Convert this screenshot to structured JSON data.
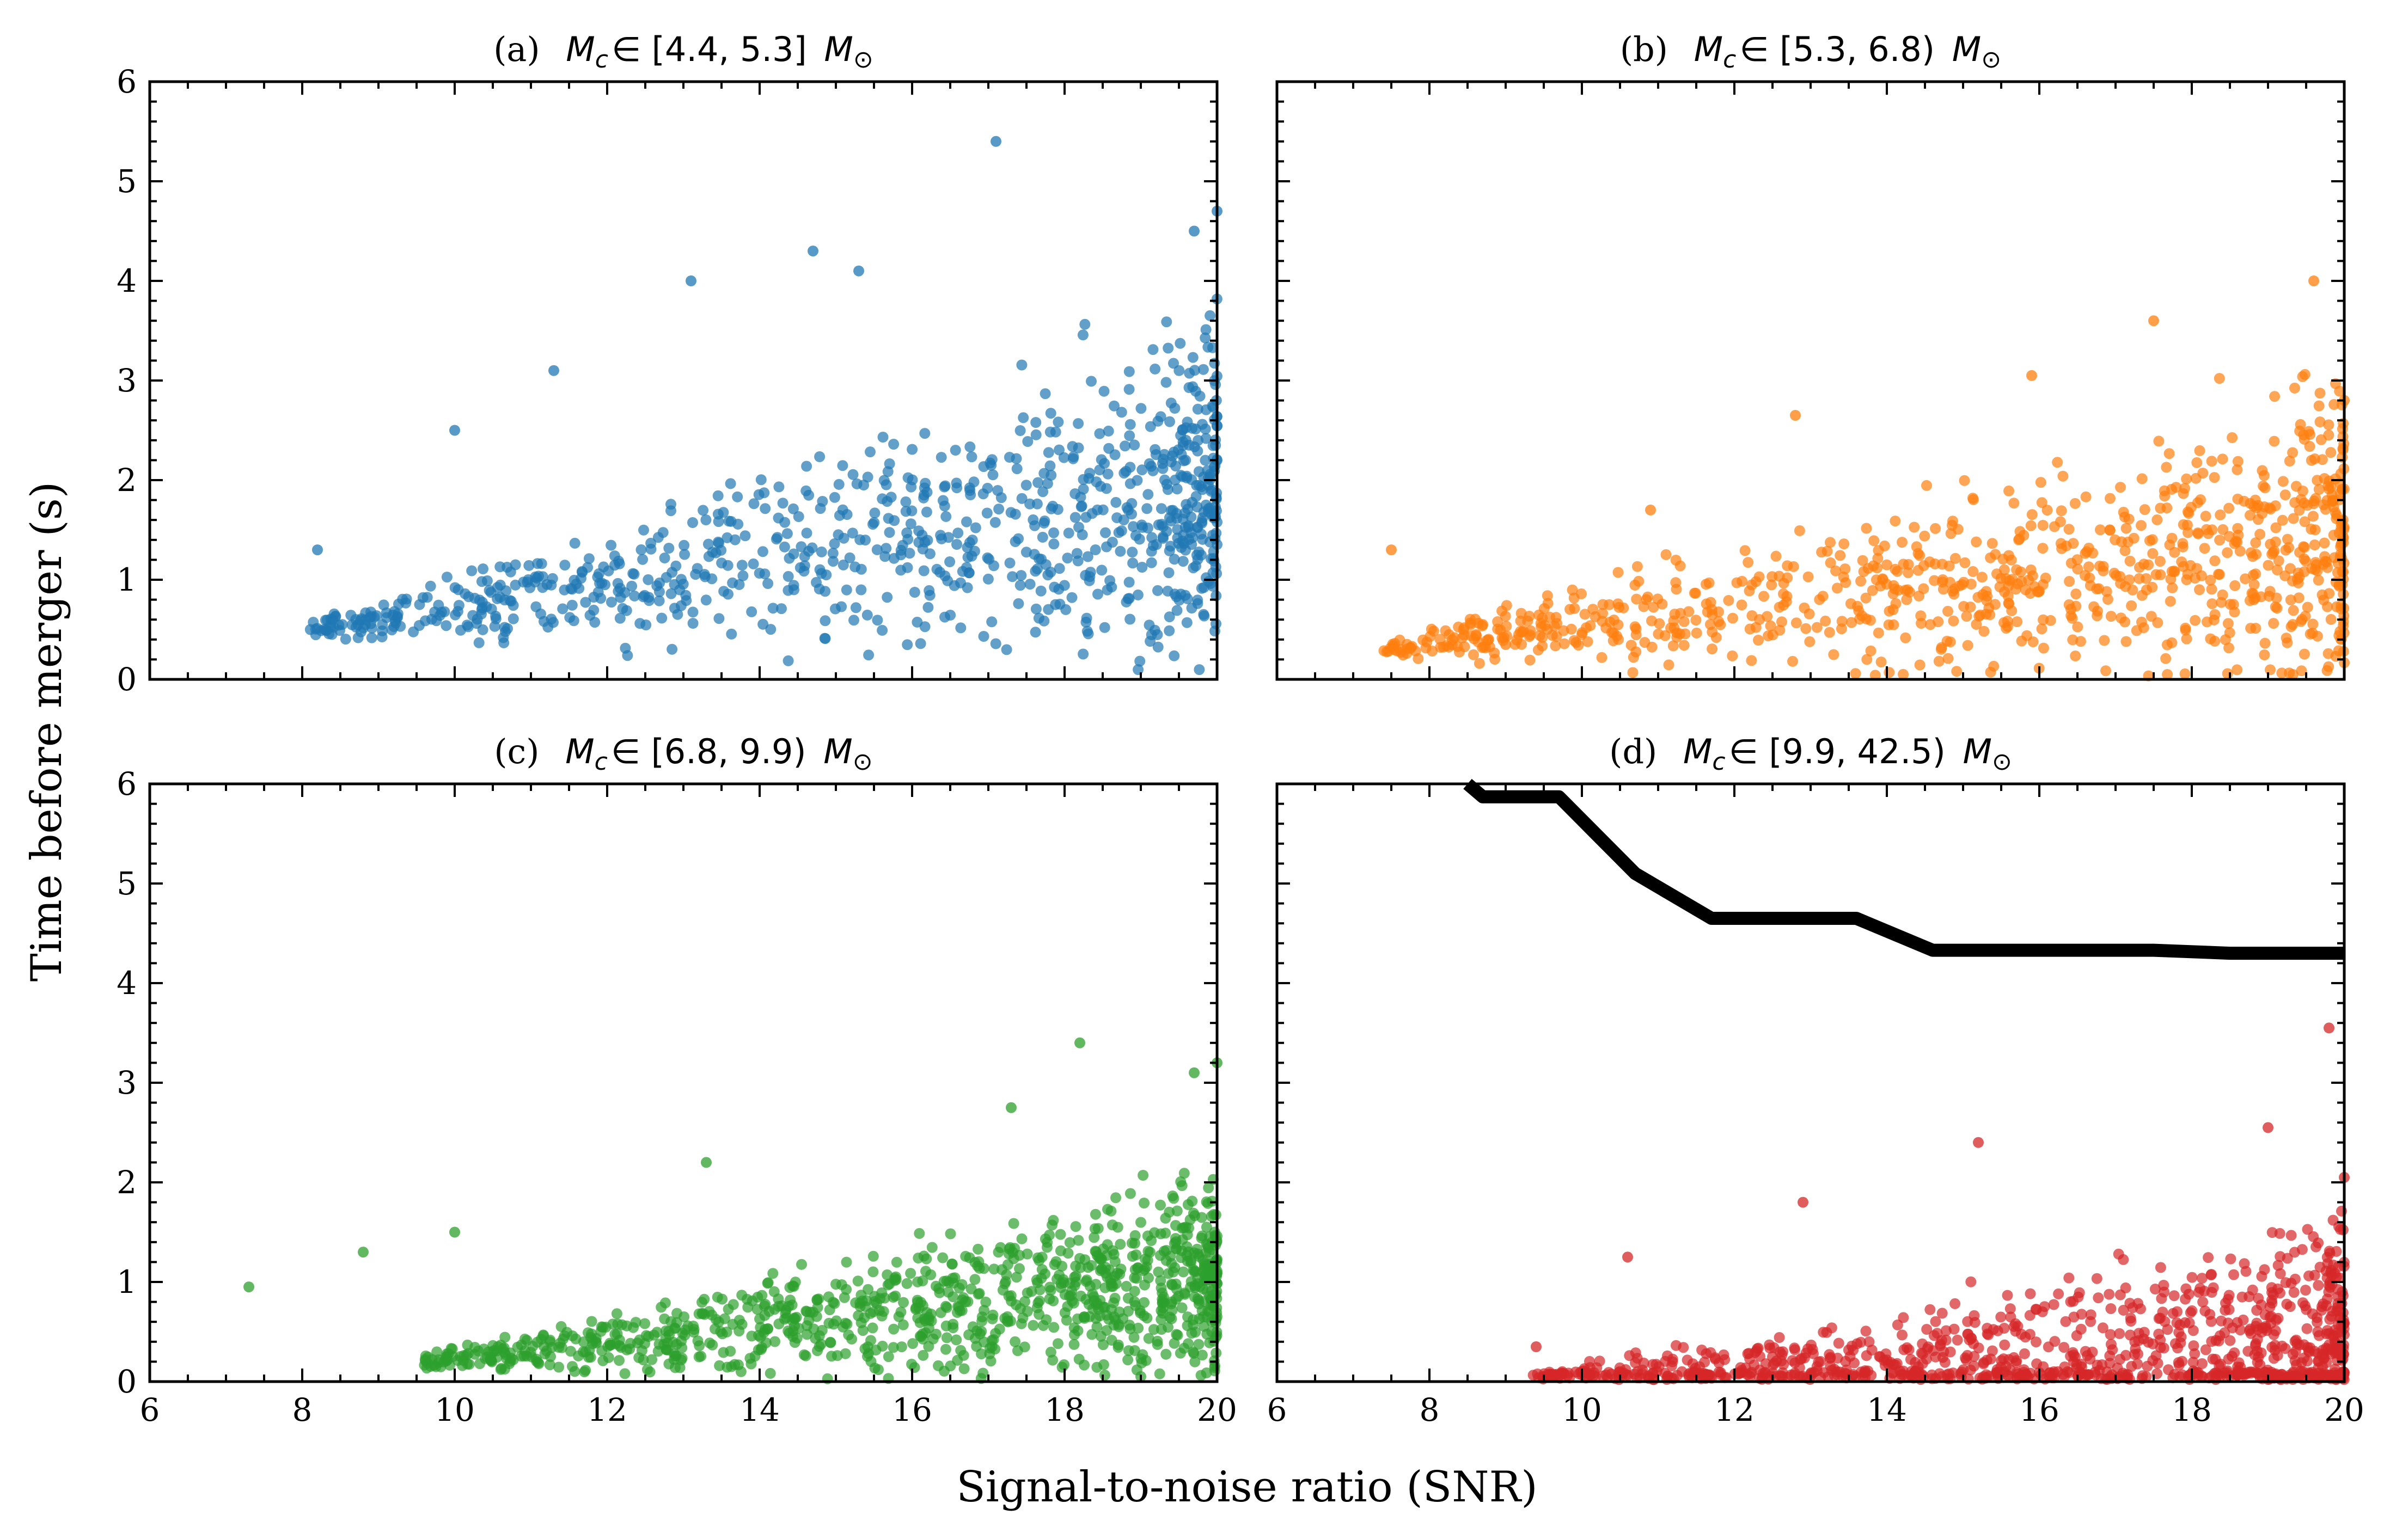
{
  "chart_data": [
    {
      "type": "scatter",
      "panel": "a",
      "title": {
        "prefix": "(a)",
        "symbol": "M",
        "subscript": "c",
        "range": "∈ [4.4, 5.3]",
        "unit": "M",
        "unit_sub": "⊙"
      },
      "color": "#1f77b4",
      "xlim": [
        6,
        20
      ],
      "ylim": [
        0,
        6
      ],
      "xticks": [
        "6",
        "8",
        "10",
        "12",
        "14",
        "16",
        "18",
        "20"
      ],
      "yticks": [
        "0",
        "1",
        "2",
        "3",
        "4",
        "5",
        "6"
      ],
      "point_count": 900,
      "distribution": {
        "snr_min": 8.1,
        "tau_base": 0.5,
        "tau_mean_slope": 0.115,
        "tau_spread_slope": 0.19,
        "seed": 11
      },
      "x": [
        8.2,
        8.4,
        10.0,
        11.3,
        13.1,
        14.7,
        15.3,
        17.1,
        19.7,
        20.0
      ],
      "y": [
        1.3,
        0.6,
        2.5,
        3.1,
        4.0,
        4.3,
        4.1,
        5.4,
        4.5,
        4.7
      ]
    },
    {
      "type": "scatter",
      "panel": "b",
      "title": {
        "prefix": "(b)",
        "symbol": "M",
        "subscript": "c",
        "range": "∈ [5.3, 6.8)",
        "unit": "M",
        "unit_sub": "⊙"
      },
      "color": "#ff7f0e",
      "xlim": [
        6,
        20
      ],
      "ylim": [
        0,
        6
      ],
      "xticks": [
        "6",
        "8",
        "10",
        "12",
        "14",
        "16",
        "18",
        "20"
      ],
      "yticks": [
        "0",
        "1",
        "2",
        "3",
        "4",
        "5",
        "6"
      ],
      "point_count": 900,
      "distribution": {
        "snr_min": 7.4,
        "tau_base": 0.3,
        "tau_mean_slope": 0.09,
        "tau_spread_slope": 0.16,
        "seed": 23
      },
      "x": [
        7.5,
        8.7,
        9.0,
        10.9,
        12.8,
        15.9,
        17.5,
        19.6,
        20.0
      ],
      "y": [
        1.3,
        0.55,
        0.35,
        1.7,
        2.65,
        3.05,
        3.6,
        4.0,
        2.8
      ]
    },
    {
      "type": "scatter",
      "panel": "c",
      "title": {
        "prefix": "(c)",
        "symbol": "M",
        "subscript": "c",
        "range": "∈ [6.8, 9.9)",
        "unit": "M",
        "unit_sub": "⊙"
      },
      "color": "#2ca02c",
      "xlim": [
        6,
        20
      ],
      "ylim": [
        0,
        6
      ],
      "xticks": [
        "6",
        "8",
        "10",
        "12",
        "14",
        "16",
        "18",
        "20"
      ],
      "yticks": [
        "0",
        "1",
        "2",
        "3",
        "4",
        "5",
        "6"
      ],
      "point_count": 1000,
      "distribution": {
        "snr_min": 9.6,
        "tau_base": 0.2,
        "tau_mean_slope": 0.08,
        "tau_spread_slope": 0.13,
        "seed": 37
      },
      "x": [
        7.3,
        8.8,
        10.0,
        13.3,
        17.3,
        18.2,
        19.7,
        20.0
      ],
      "y": [
        0.95,
        1.3,
        1.5,
        2.2,
        2.75,
        3.4,
        3.1,
        3.2
      ]
    },
    {
      "type": "scatter",
      "panel": "d",
      "title": {
        "prefix": "(d)",
        "symbol": "M",
        "subscript": "c",
        "range": "∈ [9.9, 42.5)",
        "unit": "M",
        "unit_sub": "⊙"
      },
      "color": "#d62728",
      "xlim": [
        6,
        20
      ],
      "ylim": [
        0,
        6
      ],
      "xticks": [
        "6",
        "8",
        "10",
        "12",
        "14",
        "16",
        "18",
        "20"
      ],
      "yticks": [
        "0",
        "1",
        "2",
        "3",
        "4",
        "5",
        "6"
      ],
      "point_count": 1000,
      "distribution": {
        "snr_min": 9.3,
        "tau_base": 0.02,
        "tau_mean_slope": 0.03,
        "tau_spread_slope": 0.14,
        "seed": 53
      },
      "x": [
        9.4,
        10.6,
        12.9,
        15.2,
        19.0,
        19.8,
        20.0
      ],
      "y": [
        0.35,
        1.25,
        1.8,
        2.4,
        2.55,
        3.55,
        2.05
      ],
      "line": {
        "color": "#000000",
        "x": [
          8.5,
          8.7,
          9.7,
          10.7,
          11.7,
          12.7,
          13.6,
          14.6,
          15.6,
          16.6,
          17.5,
          18.5,
          19.5,
          20.0
        ],
        "y": [
          6.0,
          5.87,
          5.87,
          5.1,
          4.65,
          4.65,
          4.65,
          4.33,
          4.33,
          4.33,
          4.33,
          4.3,
          4.3,
          4.3
        ]
      }
    }
  ],
  "axis_labels": {
    "xlabel": "Signal-to-noise ratio (SNR)",
    "ylabel": "Time before merger (s)"
  }
}
